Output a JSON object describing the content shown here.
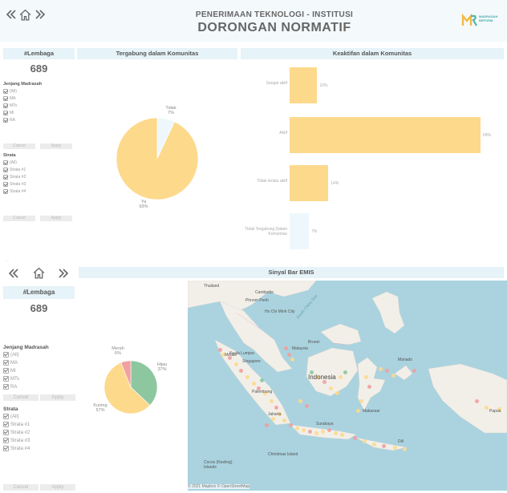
{
  "header": {
    "subtitle": "PENERIMAAN TEKNOLOGI - INSTITUSI",
    "title": "DORONGAN NORMATIF",
    "back_icon": "double-chevron-left-icon",
    "home_icon": "home-icon",
    "forward_icon": "double-chevron-right-icon",
    "logo_text_1": "MADRASAH",
    "logo_text_2": "REFORM"
  },
  "top_section": {
    "kpi": {
      "title": "#Lembaga",
      "value": "689"
    },
    "filter_jenjang": {
      "title": "Jenjang Madrasah",
      "options": [
        "(All)",
        "MA",
        "MTs",
        "MI",
        "RA"
      ],
      "cancel": "Cancel",
      "apply": "Apply"
    },
    "filter_strata": {
      "title": "Strata",
      "options": [
        "(All)",
        "Strata #1",
        "Strata #2",
        "Strata #3",
        "Strata #4"
      ],
      "cancel": "Cancel",
      "apply": "Apply"
    },
    "pie_panel": {
      "title": "Tergabung dalam Komunitas",
      "slices": [
        {
          "label": "Tidak",
          "pct": "7%",
          "value": 7,
          "color": "#eef8fc"
        },
        {
          "label": "Ya",
          "pct": "93%",
          "value": 93,
          "color": "#fdd98c"
        }
      ]
    },
    "bar_panel": {
      "title": "Keaktifan dalam Komunitas",
      "bars": [
        {
          "label": "Sangat aktif",
          "value": 10,
          "pct": "10%",
          "color": "#fdd98c"
        },
        {
          "label": "Aktif",
          "value": 69,
          "pct": "69%",
          "color": "#fdd98c"
        },
        {
          "label": "Tidak terlalu aktif",
          "value": 14,
          "pct": "14%",
          "color": "#fdd98c"
        },
        {
          "label": "Tidak Tergabung Dalam Komunitas",
          "value": 7,
          "pct": "7%",
          "color": "#eef8fc"
        }
      ]
    }
  },
  "bottom_section": {
    "kpi": {
      "title": "#Lembaga",
      "value": "689"
    },
    "filter_jenjang": {
      "title": "Jenjang Madrasah",
      "options": [
        "(All)",
        "MA",
        "MI",
        "MTs",
        "RA"
      ],
      "cancel": "Cancel",
      "apply": "Apply"
    },
    "filter_strata": {
      "title": "Strata",
      "options": [
        "(All)",
        "Strata #1",
        "Strata #2",
        "Strata #3",
        "Strata #4"
      ],
      "cancel": "Cancel",
      "apply": "Apply"
    },
    "signal_panel": {
      "title": "Sinyal Bar EMIS",
      "slices": [
        {
          "label": "Hijau",
          "pct": "37%",
          "value": 37,
          "color": "#8dc7a0"
        },
        {
          "label": "Kuning",
          "pct": "57%",
          "value": 57,
          "color": "#fdd98c"
        },
        {
          "label": "Merah",
          "pct": "6%",
          "value": 6,
          "color": "#f0a0a0"
        }
      ]
    },
    "map": {
      "labels": {
        "thailand": "Thailand",
        "cambodia": "Cambodia",
        "phnom_penh": "Phnom Penh",
        "ho_chi_minh": "Ho Chi Minh City",
        "brunei": "Brunei",
        "malaysia": "Malaysia",
        "kuala_lumpur": "Kuala Lumpur",
        "singapore": "Singapore",
        "medan": "Medan",
        "manado": "Manado",
        "indonesia": "Indonesia",
        "palembang": "Palembang",
        "jakarta": "Jakarta",
        "surabaya": "Surabaya",
        "makassar": "Makassar",
        "dili": "Dili",
        "papua": "Papua",
        "christmas_island": "Christmas Island",
        "cocos": "Cocos (Keeling) Islands",
        "south_china_sea": "South China Sea"
      },
      "attribution": "© 2021 Mapbox © OpenStreetMap"
    }
  }
}
